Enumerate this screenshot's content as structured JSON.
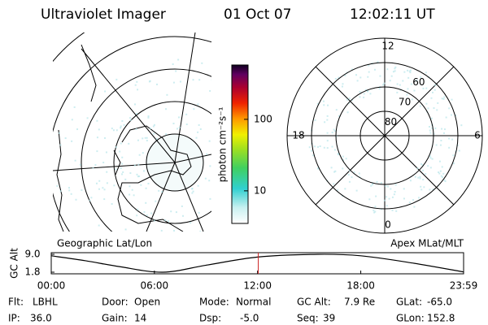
{
  "header": {
    "title": "Ultraviolet Imager",
    "date": "01 Oct 07",
    "time": "12:02:11 UT"
  },
  "colorbar": {
    "label": "photon cm⁻²s⁻¹",
    "lim": [
      3.5,
      575
    ],
    "ticks": [
      10,
      100
    ],
    "log": true
  },
  "polar_plot": {
    "mlt_labels": [
      12,
      6,
      0,
      18
    ],
    "mlat_labels": [
      80,
      70,
      60
    ]
  },
  "map_labels": {
    "left": "Geographic Lat/Lon",
    "right": "Apex MLat/MLT"
  },
  "timeline": {
    "y_label": "GC Alt",
    "xlim": [
      0,
      23.98
    ],
    "ylim": [
      1.8,
      9.0
    ],
    "yticks": [
      {
        "value": 9.0,
        "label": "9.0"
      },
      {
        "value": 1.8,
        "label": "1.8"
      }
    ],
    "xticks": [
      {
        "value": 0,
        "label": "00:00"
      },
      {
        "value": 6,
        "label": "06:00"
      },
      {
        "value": 12,
        "label": "12:00"
      },
      {
        "value": 18,
        "label": "18:00"
      },
      {
        "value": 23.98,
        "label": "23:59"
      }
    ],
    "x": [
      0,
      2,
      4,
      6.5,
      9,
      12,
      15.5,
      18,
      21,
      23.98
    ],
    "values": [
      8.4,
      6.4,
      4.0,
      1.8,
      4.6,
      7.9,
      9.0,
      8.4,
      5.5,
      1.9
    ],
    "color": "#000000",
    "marker": 12.04,
    "marker_color": "#cc2222"
  },
  "footer": {
    "rows": [
      [
        {
          "label": "Flt:",
          "value": "LBHL"
        },
        {
          "label": "Door:",
          "value": "Open"
        },
        {
          "label": "Mode:",
          "value": "Normal"
        },
        {
          "label": "GC Alt:",
          "value": "7.9 Re"
        },
        {
          "label": "GLat:",
          "value": "-65.0"
        }
      ],
      [
        {
          "label": "IP:",
          "value": "36.0"
        },
        {
          "label": "Gain:",
          "value": "14"
        },
        {
          "label": "Dsp:",
          "value": "-5.0"
        },
        {
          "label": "Seq:",
          "value": "39"
        },
        {
          "label": "GLon:",
          "value": "152.8"
        }
      ]
    ]
  }
}
